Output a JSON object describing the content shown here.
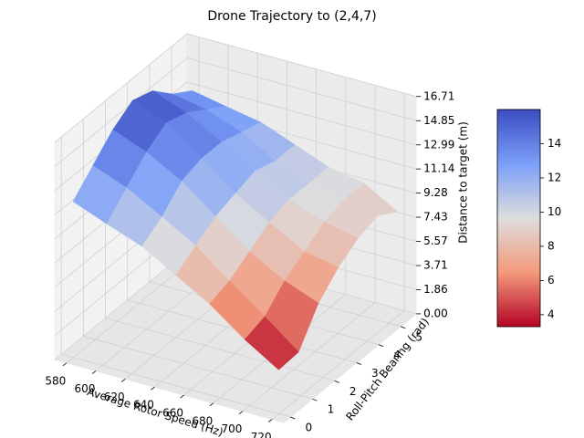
{
  "chart_data": {
    "type": "surface",
    "title": "Drone Trajectory to (2,4,7)",
    "xlabel": "Average Rotor Speed (Hz)",
    "ylabel": "Roll-Pitch Bearing (rad)",
    "zlabel": "Distance to target (m)",
    "x": [
      580,
      603,
      627,
      650,
      673,
      697,
      720
    ],
    "y": [
      0,
      0.9,
      1.8,
      2.7,
      3.6,
      4.5,
      5.4
    ],
    "z": [
      [
        12,
        11,
        10,
        8.5,
        7,
        5,
        3.4
      ],
      [
        13.5,
        12.5,
        11,
        9.5,
        7.5,
        5.5,
        3.5
      ],
      [
        15,
        14,
        12.5,
        10.5,
        8.5,
        7,
        6
      ],
      [
        16,
        15,
        13,
        11,
        9.5,
        8,
        7.5
      ],
      [
        15.5,
        14.5,
        13,
        11.5,
        10,
        9,
        8.5
      ],
      [
        14,
        13.5,
        12.5,
        11,
        10,
        9.5,
        9
      ],
      [
        13,
        12.5,
        12,
        11,
        10,
        9.5,
        8
      ]
    ],
    "xlim": [
      572,
      728
    ],
    "xticks": [
      580,
      600,
      620,
      640,
      660,
      680,
      700,
      720
    ],
    "ylim": [
      -0.3,
      5.7
    ],
    "yticks": [
      0,
      1,
      2,
      3,
      4,
      5
    ],
    "zlim": [
      0,
      16.71
    ],
    "zticks": [
      {
        "value": 0,
        "label": "0.00"
      },
      1.86,
      3.71,
      5.57,
      7.43,
      9.28,
      11.14,
      12.99,
      14.85,
      16.71
    ],
    "colormap": [
      "#b40426",
      "#f49a7b",
      "#dddddd",
      "#7b9ff9",
      "#3b4cc0"
    ],
    "clim": [
      3.3,
      16.0
    ],
    "colorbar_ticks": [
      4,
      6,
      8,
      10,
      12,
      14
    ],
    "grid": true
  }
}
